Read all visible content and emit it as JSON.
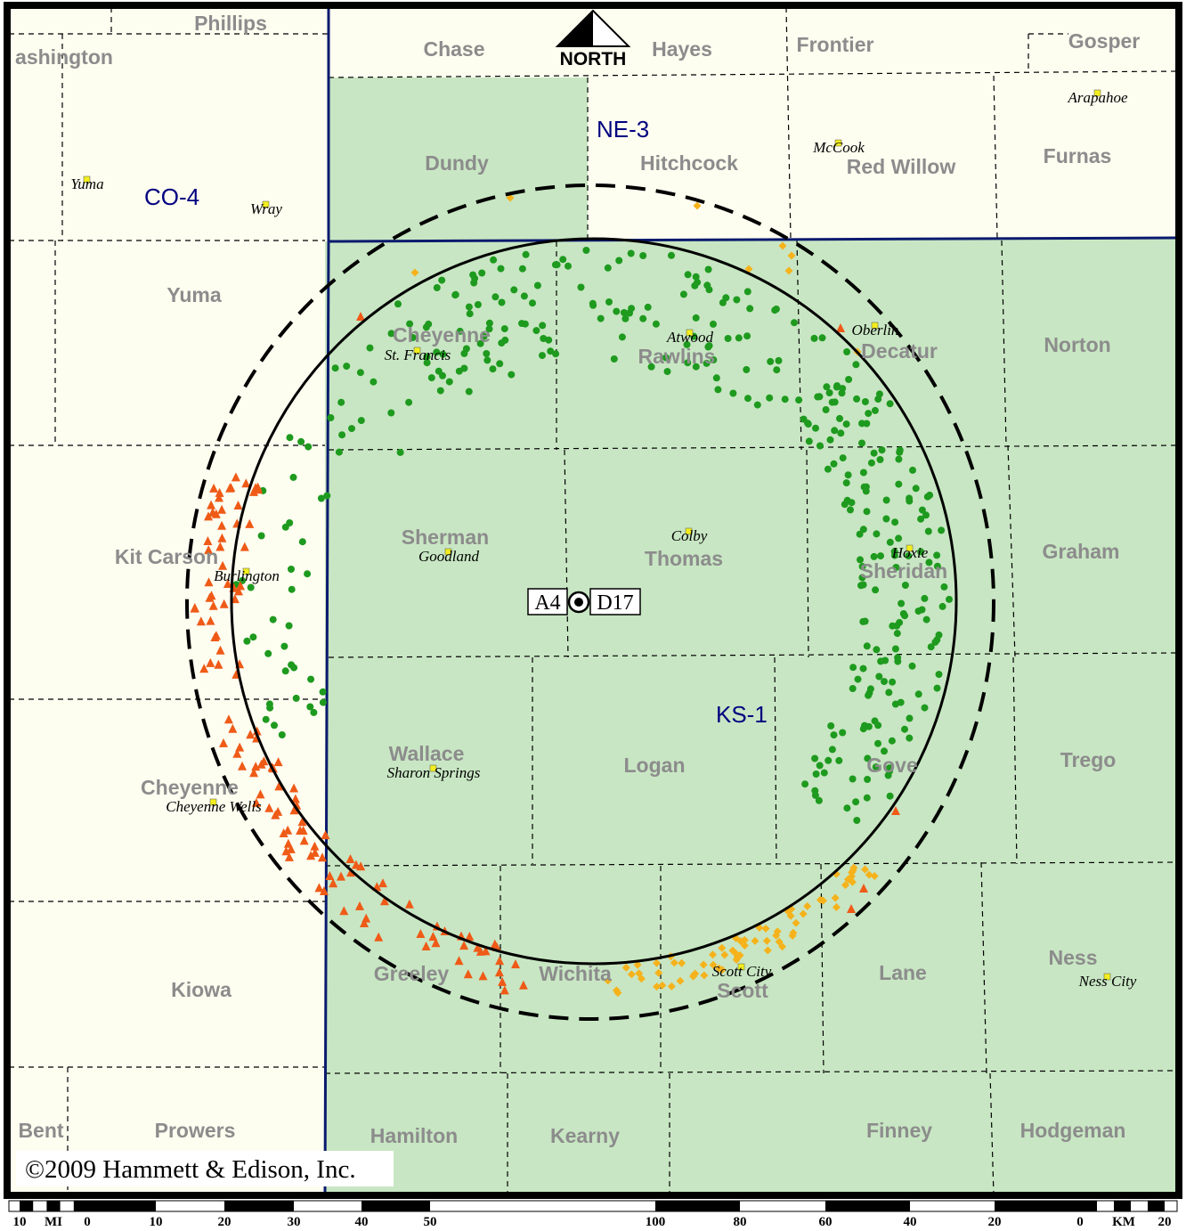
{
  "colors": {
    "frame": "#000000",
    "land_default": "#fdfdf0",
    "land_kansas": "#c8e6c3",
    "county_line": "#000000",
    "state_line": "#0a1a6e",
    "county_label": "#8c8c8c",
    "region_label": "#000080",
    "green_points": "#1e9a1e",
    "orange_triangles": "#ef5a17",
    "yellow_diamonds": "#f5b21b",
    "town_marker": "#f2ee1f"
  },
  "north_arrow": {
    "label": "NORTH"
  },
  "region_labels": [
    {
      "id": "ne3",
      "text": "NE-3"
    },
    {
      "id": "co4",
      "text": "CO-4"
    },
    {
      "id": "ks1",
      "text": "KS-1"
    }
  ],
  "county_labels": [
    "Phillips",
    "ashington",
    "Chase",
    "Hayes",
    "Frontier",
    "Gosper",
    "Dundy",
    "Hitchcock",
    "Red Willow",
    "Furnas",
    "Yuma",
    "Cheyenne",
    "Rawlins",
    "Decatur",
    "Norton",
    "Kit Carson",
    "Sherman",
    "Thomas",
    "Sheridan",
    "Graham",
    "Wallace",
    "Logan",
    "Gove",
    "Trego",
    "Cheyenne",
    "Kiowa",
    "Greeley",
    "Wichita",
    "Scott",
    "Lane",
    "Ness",
    "Bent",
    "Prowers",
    "Hamilton",
    "Kearny",
    "Finney",
    "Hodgeman"
  ],
  "town_labels": [
    "Arapahoe",
    "McCook",
    "Yuma",
    "Wray",
    "St. Francis",
    "Atwood",
    "Oberlin",
    "Colby",
    "Goodland",
    "Hoxie",
    "Burlington",
    "Sharon Springs",
    "Cheyenne Wells",
    "Scott City",
    "Ness City"
  ],
  "station": {
    "left_label": "A4",
    "right_label": "D17"
  },
  "copyright": "©2009 Hammett & Edison, Inc.",
  "scale": {
    "mi_unit": "MI",
    "km_unit": "KM",
    "mi_labels": [
      "10",
      "0",
      "10",
      "20",
      "30",
      "40",
      "50"
    ],
    "km_labels": [
      "100",
      "80",
      "60",
      "40",
      "20",
      "0",
      "20"
    ]
  }
}
